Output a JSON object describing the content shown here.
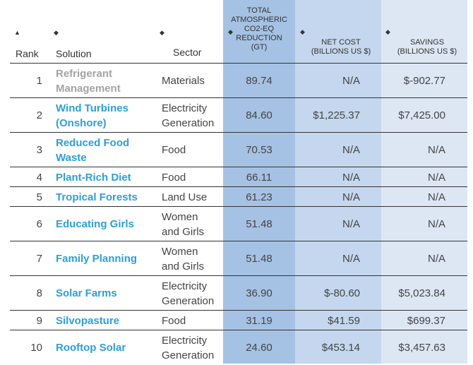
{
  "table": {
    "headers": {
      "rank": "Rank",
      "solution": "Solution",
      "sector": "Sector",
      "reduction": [
        "TOTAL",
        "ATMOSPHERIC",
        "CO2-EQ",
        "REDUCTION",
        "(GT)"
      ],
      "net_cost": [
        "NET COST",
        "(BILLIONS US $)"
      ],
      "savings": [
        "SAVINGS",
        "(BILLIONS US $)"
      ],
      "sort_icon_asc": "▲",
      "sort_icon_both": "◆"
    },
    "rows": [
      {
        "rank": "1",
        "solution": [
          "Refrigerant",
          "Management"
        ],
        "sector": [
          "Materials"
        ],
        "reduction": "89.74",
        "net_cost": "N/A",
        "savings": "$-902.77"
      },
      {
        "rank": "2",
        "solution": [
          "Wind Turbines",
          "(Onshore)"
        ],
        "sector": [
          "Electricity",
          "Generation"
        ],
        "reduction": "84.60",
        "net_cost": "$1,225.37",
        "savings": "$7,425.00"
      },
      {
        "rank": "3",
        "solution": [
          "Reduced Food",
          "Waste"
        ],
        "sector": [
          "Food"
        ],
        "reduction": "70.53",
        "net_cost": "N/A",
        "savings": "N/A"
      },
      {
        "rank": "4",
        "solution": [
          "Plant-Rich Diet"
        ],
        "sector": [
          "Food"
        ],
        "reduction": "66.11",
        "net_cost": "N/A",
        "savings": "N/A"
      },
      {
        "rank": "5",
        "solution": [
          "Tropical Forests"
        ],
        "sector": [
          "Land Use"
        ],
        "reduction": "61.23",
        "net_cost": "N/A",
        "savings": "N/A"
      },
      {
        "rank": "6",
        "solution": [
          "Educating Girls"
        ],
        "sector": [
          "Women",
          "and Girls"
        ],
        "reduction": "51.48",
        "net_cost": "N/A",
        "savings": "N/A"
      },
      {
        "rank": "7",
        "solution": [
          "Family Planning"
        ],
        "sector": [
          "Women",
          "and Girls"
        ],
        "reduction": "51.48",
        "net_cost": "N/A",
        "savings": "N/A"
      },
      {
        "rank": "8",
        "solution": [
          "Solar Farms"
        ],
        "sector": [
          "Electricity",
          "Generation"
        ],
        "reduction": "36.90",
        "net_cost": "$-80.60",
        "savings": "$5,023.84"
      },
      {
        "rank": "9",
        "solution": [
          "Silvopasture"
        ],
        "sector": [
          "Food"
        ],
        "reduction": "31.19",
        "net_cost": "$41.59",
        "savings": "$699.37"
      },
      {
        "rank": "10",
        "solution": [
          "Rooftop Solar"
        ],
        "sector": [
          "Electricity",
          "Generation"
        ],
        "reduction": "24.60",
        "net_cost": "$453.14",
        "savings": "$3,457.63"
      }
    ]
  },
  "colors": {
    "link": "#2c9fd6",
    "muted_link": "#a3a3a3",
    "col_reduction_bg": "#a5c2e4",
    "col_cost_bg": "#c4d7ee",
    "col_savings_bg": "#dde7f4"
  }
}
